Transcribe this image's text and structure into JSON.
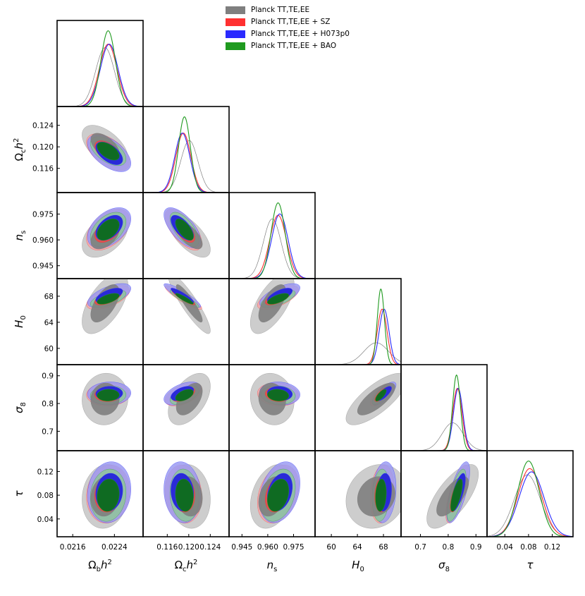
{
  "legend": {
    "items": [
      {
        "label": "Planck TT,TE,EE",
        "color": "#7f7f7f"
      },
      {
        "label": "Planck TT,TE,EE + SZ",
        "color": "#ff3030"
      },
      {
        "label": "Planck TT,TE,EE + H073p0",
        "color": "#2a2aff"
      },
      {
        "label": "Planck TT,TE,EE + BAO",
        "color": "#1f9a1f"
      }
    ]
  },
  "chart_data": {
    "type": "corner",
    "parameters": [
      {
        "key": "omb",
        "label_main": "Ω",
        "label_sub": "b",
        "label_tail": "h",
        "label_sup": "2",
        "range": [
          0.0213,
          0.02295
        ],
        "ticks": [
          0.0216,
          0.0224
        ],
        "tick_labels": [
          "0.0216",
          "0.0224"
        ]
      },
      {
        "key": "omc",
        "label_main": "Ω",
        "label_sub": "c",
        "label_tail": "h",
        "label_sup": "2",
        "range": [
          0.1115,
          0.1275
        ],
        "ticks": [
          0.116,
          0.12,
          0.124
        ],
        "tick_labels": [
          "0.116",
          "0.120",
          "0.124"
        ]
      },
      {
        "key": "ns",
        "label_main": "n",
        "label_sub": "s",
        "label_tail": "",
        "label_sup": "",
        "range": [
          0.9375,
          0.9875
        ],
        "ticks": [
          0.945,
          0.96,
          0.975
        ],
        "tick_labels": [
          "0.945",
          "0.960",
          "0.975"
        ]
      },
      {
        "key": "H0",
        "label_main": "H",
        "label_sub": "0",
        "label_tail": "",
        "label_sup": "",
        "range": [
          57.5,
          70.7
        ],
        "ticks": [
          60,
          64,
          68
        ],
        "tick_labels": [
          "60",
          "64",
          "68"
        ]
      },
      {
        "key": "s8",
        "label_main": "σ",
        "label_sub": "8",
        "label_tail": "",
        "label_sup": "",
        "range": [
          0.63,
          0.94
        ],
        "ticks": [
          0.7,
          0.8,
          0.9
        ],
        "tick_labels": [
          "0.7",
          "0.8",
          "0.9"
        ]
      },
      {
        "key": "tau",
        "label_main": "τ",
        "label_sub": "",
        "label_tail": "",
        "label_sup": "",
        "range": [
          0.01,
          0.155
        ],
        "ticks": [
          0.04,
          0.08,
          0.12
        ],
        "tick_labels": [
          "0.04",
          "0.08",
          "0.12"
        ]
      }
    ],
    "series": [
      {
        "name": "Planck TT,TE,EE",
        "color": "#7f7f7f",
        "fill_outer": "#c8c8c8",
        "fill_inner": "#7f7f7f",
        "mean": [
          0.02222,
          0.1201,
          0.9626,
          66.9,
          0.816,
          0.078
        ],
        "sigma": [
          0.00018,
          0.0016,
          0.0052,
          1.9,
          0.038,
          0.022
        ]
      },
      {
        "name": "Planck TT,TE,EE + SZ",
        "color": "#ff3030",
        "fill_outer": "#f4a8a8",
        "fill_inner": "#e05050",
        "mean": [
          0.02228,
          0.119,
          0.966,
          67.8,
          0.833,
          0.082
        ],
        "sigma": [
          0.00017,
          0.0014,
          0.0049,
          0.75,
          0.017,
          0.02
        ]
      },
      {
        "name": "Planck TT,TE,EE + H073p0",
        "color": "#2a2aff",
        "fill_outer": "#9b9bf2",
        "fill_inner": "#2a2ad8",
        "mean": [
          0.0223,
          0.1188,
          0.967,
          68.1,
          0.836,
          0.085
        ],
        "sigma": [
          0.00017,
          0.0014,
          0.0048,
          0.75,
          0.017,
          0.021
        ]
      },
      {
        "name": "Planck TT,TE,EE + BAO",
        "color": "#1f9a1f",
        "fill_outer": "#8fc49a",
        "fill_inner": "#0f6b22",
        "mean": [
          0.02228,
          0.1192,
          0.966,
          67.6,
          0.83,
          0.08
        ],
        "sigma": [
          0.00014,
          0.0011,
          0.0041,
          0.55,
          0.014,
          0.018
        ]
      }
    ],
    "correlations": {
      "omb-omc": -0.55,
      "omb-ns": 0.45,
      "omc-ns": -0.65,
      "omb-H0": 0.6,
      "omc-H0": -0.9,
      "ns-H0": 0.65,
      "omb-s8": 0.05,
      "omc-s8": 0.5,
      "ns-s8": -0.1,
      "H0-s8": 0.75,
      "omb-tau": 0.1,
      "omc-tau": -0.1,
      "ns-tau": 0.3,
      "H0-tau": 0.15,
      "s8-tau": 0.7
    },
    "grid": false,
    "legend_position": "top-right"
  }
}
